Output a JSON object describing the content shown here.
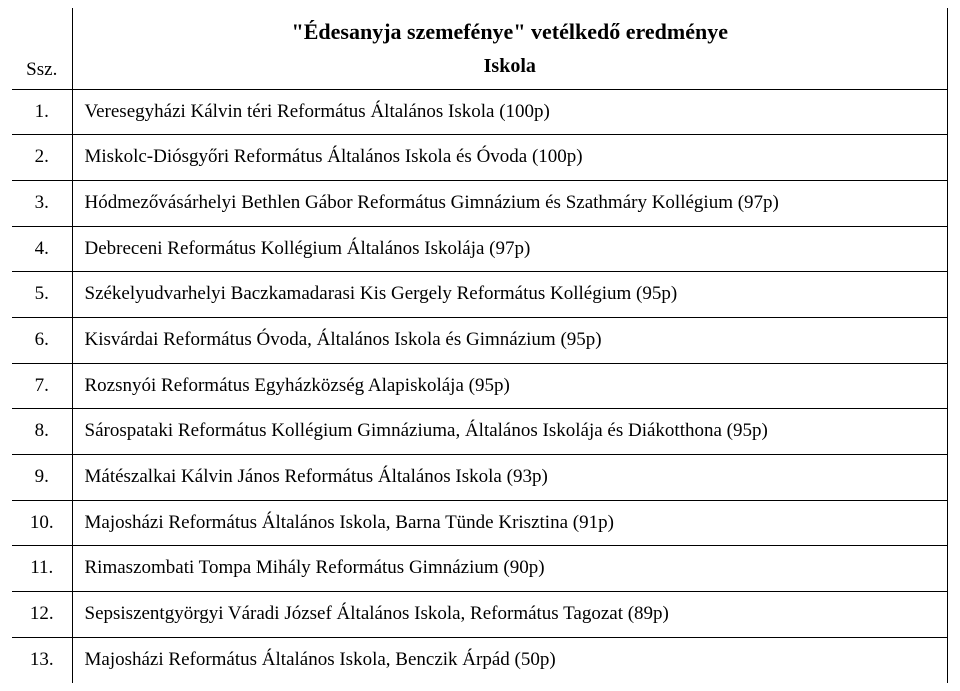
{
  "header": {
    "title": "\"Édesanyja szemefénye\" vetélkedő eredménye",
    "corner": "Ssz.",
    "subtitle": "Iskola"
  },
  "rows": [
    {
      "n": "1.",
      "school": "Veresegyházi Kálvin téri Református Általános Iskola  (100p)"
    },
    {
      "n": "2.",
      "school": "Miskolc-Diósgyőri Református Általános Iskola és Óvoda  (100p)"
    },
    {
      "n": "3.",
      "school": "Hódmezővásárhelyi Bethlen Gábor Református Gimnázium és Szathmáry Kollégium  (97p)"
    },
    {
      "n": "4.",
      "school": "Debreceni Református Kollégium Általános Iskolája  (97p)"
    },
    {
      "n": "5.",
      "school": "Székelyudvarhelyi Baczkamadarasi Kis Gergely Református Kollégium  (95p)"
    },
    {
      "n": "6.",
      "school": "Kisvárdai Református Óvoda, Általános Iskola és Gimnázium  (95p)"
    },
    {
      "n": "7.",
      "school": "Rozsnyói Református Egyházközség Alapiskolája  (95p)"
    },
    {
      "n": "8.",
      "school": "Sárospataki Református Kollégium Gimnáziuma, Általános Iskolája és Diákotthona  (95p)"
    },
    {
      "n": "9.",
      "school": "Mátészalkai Kálvin János Református Általános Iskola  (93p)"
    },
    {
      "n": "10.",
      "school": "Majosházi Református Általános Iskola, Barna Tünde Krisztina  (91p)"
    },
    {
      "n": "11.",
      "school": "Rimaszombati Tompa Mihály Református Gimnázium  (90p)"
    },
    {
      "n": "12.",
      "school": "Sepsiszentgyörgyi Váradi József Általános Iskola, Református Tagozat  (89p)"
    },
    {
      "n": "13.",
      "school": "Majosházi Református Általános Iskola, Benczik Árpád  (50p)"
    }
  ]
}
